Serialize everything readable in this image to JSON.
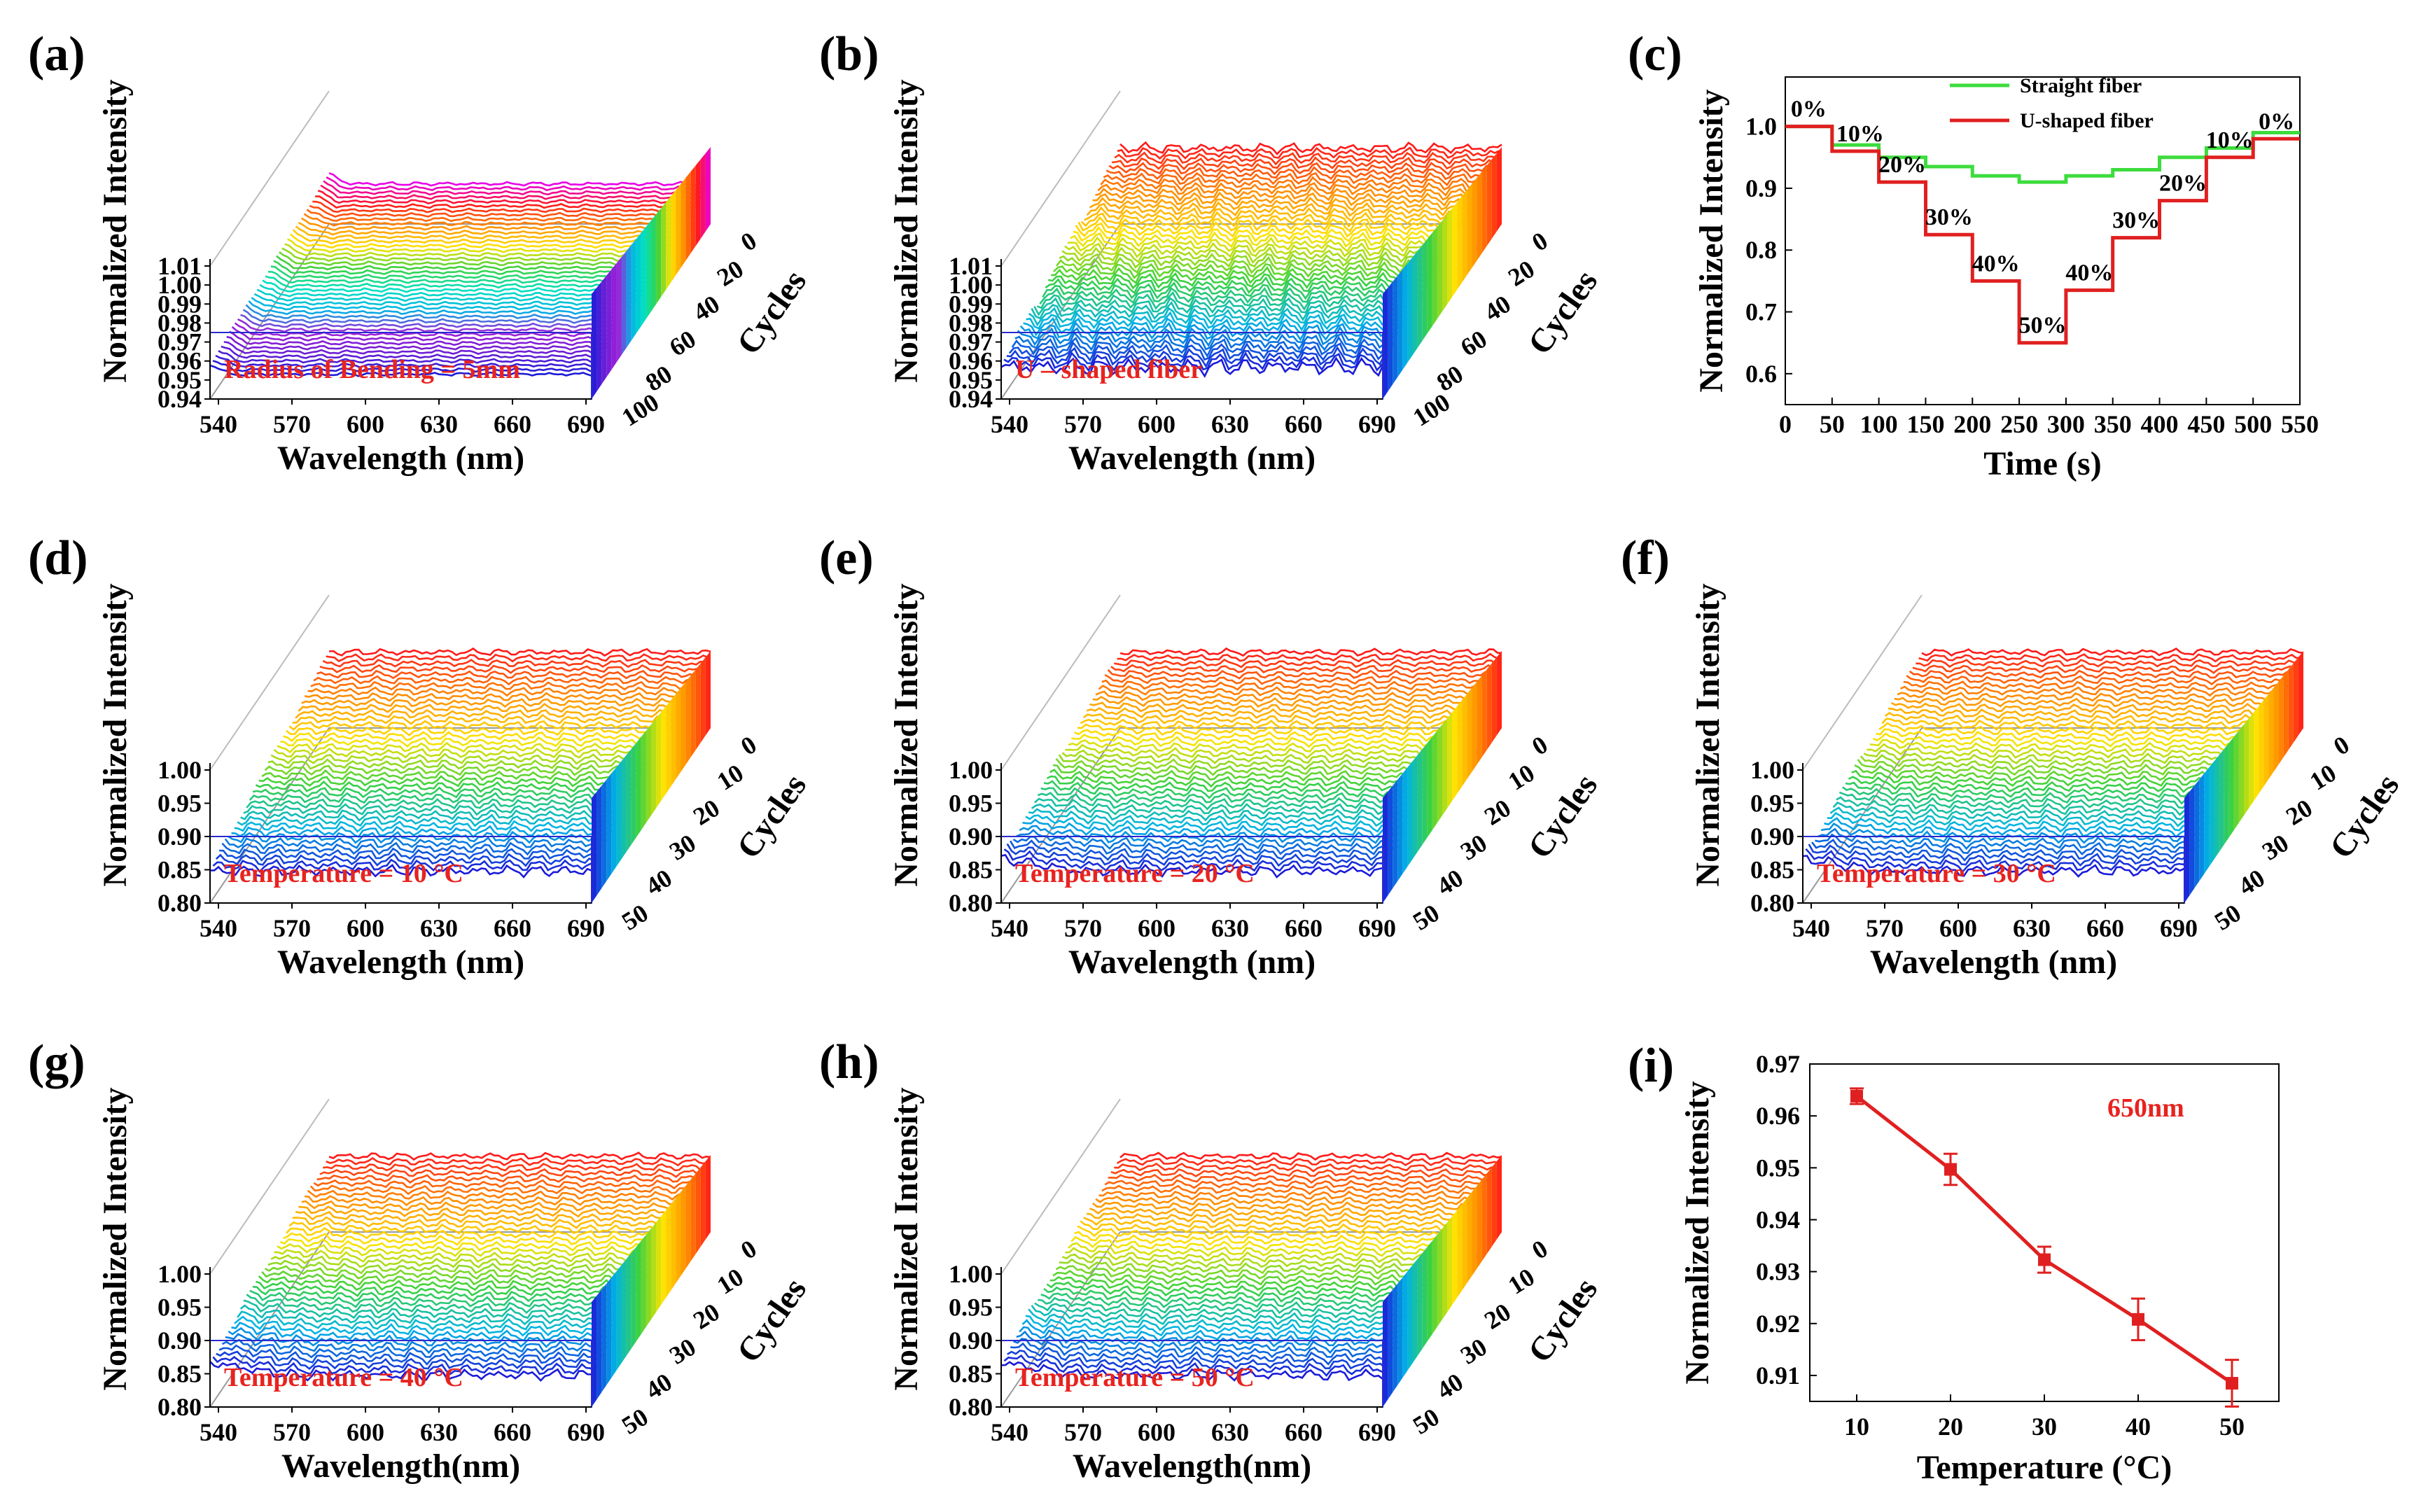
{
  "chart_data": [
    {
      "panel": "(a)",
      "type": "line",
      "subtype": "3d-waterfall",
      "xlabel": "Wavelength (nm)",
      "ylabel": "Normalized Intensity",
      "zlabel": "Cycles",
      "xticks": [
        "540",
        "570",
        "600",
        "630",
        "660",
        "690"
      ],
      "yticks": [
        "0.94",
        "0.95",
        "0.96",
        "0.97",
        "0.98",
        "0.99",
        "1.00",
        "1.01"
      ],
      "zticks": [
        "0",
        "20",
        "40",
        "60",
        "80",
        "100"
      ],
      "ylim": [
        0.94,
        1.01
      ],
      "n_cycles": 100,
      "annotation": "Radius of Bending = 5mm",
      "annotation_color": "#e8231f",
      "palette": [
        "#1b1bd9",
        "#6a1fd6",
        "#a020d8",
        "#00b4e6",
        "#00e0c0",
        "#3cd23c",
        "#ffe400",
        "#ff8c00",
        "#ff1a1a",
        "#e800e8"
      ]
    },
    {
      "panel": "(b)",
      "type": "line",
      "subtype": "3d-waterfall",
      "xlabel": "Wavelength (nm)",
      "ylabel": "Normalized Intensity",
      "zlabel": "Cycles",
      "xticks": [
        "540",
        "570",
        "600",
        "630",
        "660",
        "690"
      ],
      "yticks": [
        "0.94",
        "0.95",
        "0.96",
        "0.97",
        "0.98",
        "0.99",
        "1.00",
        "1.01"
      ],
      "zticks": [
        "0",
        "20",
        "40",
        "60",
        "80",
        "100"
      ],
      "ylim": [
        0.94,
        1.01
      ],
      "n_cycles": 100,
      "annotation": "U – shaped fiber",
      "annotation_color": "#e8231f",
      "palette": [
        "#1b1bd9",
        "#00b4e6",
        "#3cd23c",
        "#ffe400",
        "#ff8c00",
        "#ff1a1a"
      ]
    },
    {
      "panel": "(c)",
      "type": "line",
      "subtype": "step",
      "xlabel": "Time (s)",
      "ylabel": "Normalized Intensity",
      "xlim": [
        0,
        550
      ],
      "ylim": [
        0.55,
        1.08
      ],
      "xticks": [
        "0",
        "50",
        "100",
        "150",
        "200",
        "250",
        "300",
        "350",
        "400",
        "450",
        "500",
        "550"
      ],
      "yticks": [
        "0.6",
        "0.7",
        "0.8",
        "0.9",
        "1.0"
      ],
      "series": [
        {
          "name": "Straight fiber",
          "color": "#3ddc3d",
          "x": [
            0,
            50,
            50,
            100,
            100,
            150,
            150,
            200,
            200,
            250,
            250,
            300,
            300,
            350,
            350,
            400,
            400,
            450,
            450,
            500,
            500,
            550
          ],
          "y": [
            1.0,
            1.0,
            0.97,
            0.97,
            0.95,
            0.95,
            0.935,
            0.935,
            0.92,
            0.92,
            0.91,
            0.91,
            0.92,
            0.92,
            0.93,
            0.93,
            0.95,
            0.95,
            0.965,
            0.965,
            0.99,
            0.99
          ]
        },
        {
          "name": "U-shaped fiber",
          "color": "#e02020",
          "x": [
            0,
            50,
            50,
            100,
            100,
            150,
            150,
            200,
            200,
            250,
            250,
            300,
            300,
            350,
            350,
            400,
            400,
            450,
            450,
            500,
            500,
            550
          ],
          "y": [
            1.0,
            1.0,
            0.96,
            0.96,
            0.91,
            0.91,
            0.825,
            0.825,
            0.75,
            0.75,
            0.65,
            0.65,
            0.735,
            0.735,
            0.82,
            0.82,
            0.88,
            0.88,
            0.95,
            0.95,
            0.98,
            0.98
          ]
        }
      ],
      "step_labels": [
        {
          "text": "0%",
          "x": 25,
          "y": 1.0
        },
        {
          "text": "10%",
          "x": 80,
          "y": 0.96
        },
        {
          "text": "20%",
          "x": 125,
          "y": 0.91
        },
        {
          "text": "30%",
          "x": 175,
          "y": 0.825
        },
        {
          "text": "40%",
          "x": 225,
          "y": 0.75
        },
        {
          "text": "50%",
          "x": 275,
          "y": 0.65
        },
        {
          "text": "40%",
          "x": 325,
          "y": 0.735
        },
        {
          "text": "30%",
          "x": 375,
          "y": 0.82
        },
        {
          "text": "20%",
          "x": 425,
          "y": 0.88
        },
        {
          "text": "10%",
          "x": 475,
          "y": 0.95
        },
        {
          "text": "0%",
          "x": 525,
          "y": 0.98
        }
      ],
      "legend": "top-right"
    },
    {
      "panel": "(d)",
      "type": "line",
      "subtype": "3d-waterfall",
      "xlabel": "Wavelength (nm)",
      "ylabel": "Normalized Intensity",
      "zlabel": "Cycles",
      "xticks": [
        "540",
        "570",
        "600",
        "630",
        "660",
        "690"
      ],
      "yticks": [
        "0.80",
        "0.85",
        "0.90",
        "0.95",
        "1.00"
      ],
      "zticks": [
        "0",
        "10",
        "20",
        "30",
        "40",
        "50"
      ],
      "ylim": [
        0.8,
        1.0
      ],
      "n_cycles": 50,
      "annotation": "Temperature = 10 °C",
      "annotation_color": "#e8231f",
      "palette": [
        "#1b1bd9",
        "#00b4e6",
        "#3cd23c",
        "#ffe400",
        "#ff8c00",
        "#ff1a1a"
      ]
    },
    {
      "panel": "(e)",
      "type": "line",
      "subtype": "3d-waterfall",
      "xlabel": "Wavelength (nm)",
      "ylabel": "Normalized Intensity",
      "zlabel": "Cycles",
      "xticks": [
        "540",
        "570",
        "600",
        "630",
        "660",
        "690"
      ],
      "yticks": [
        "0.80",
        "0.85",
        "0.90",
        "0.95",
        "1.00"
      ],
      "zticks": [
        "0",
        "10",
        "20",
        "30",
        "40",
        "50"
      ],
      "ylim": [
        0.8,
        1.0
      ],
      "n_cycles": 50,
      "annotation": "Temperature = 20 °C",
      "annotation_color": "#e8231f",
      "palette": [
        "#1b1bd9",
        "#00b4e6",
        "#3cd23c",
        "#ffe400",
        "#ff8c00",
        "#ff1a1a"
      ]
    },
    {
      "panel": "(f)",
      "type": "line",
      "subtype": "3d-waterfall",
      "xlabel": "Wavelength (nm)",
      "ylabel": "Normalized Intensity",
      "zlabel": "Cycles",
      "xticks": [
        "540",
        "570",
        "600",
        "630",
        "660",
        "690"
      ],
      "yticks": [
        "0.80",
        "0.85",
        "0.90",
        "0.95",
        "1.00"
      ],
      "zticks": [
        "0",
        "10",
        "20",
        "30",
        "40",
        "50"
      ],
      "ylim": [
        0.8,
        1.0
      ],
      "n_cycles": 50,
      "annotation": "Temperature = 30 °C",
      "annotation_color": "#e8231f",
      "palette": [
        "#1b1bd9",
        "#00b4e6",
        "#3cd23c",
        "#ffe400",
        "#ff8c00",
        "#ff1a1a"
      ]
    },
    {
      "panel": "(g)",
      "type": "line",
      "subtype": "3d-waterfall",
      "xlabel": "Wavelength(nm)",
      "ylabel": "Normalized Intensity",
      "zlabel": "Cycles",
      "xticks": [
        "540",
        "570",
        "600",
        "630",
        "660",
        "690"
      ],
      "yticks": [
        "0.80",
        "0.85",
        "0.90",
        "0.95",
        "1.00"
      ],
      "zticks": [
        "0",
        "10",
        "20",
        "30",
        "40",
        "50"
      ],
      "ylim": [
        0.8,
        1.0
      ],
      "n_cycles": 50,
      "annotation": "Temperature = 40 °C",
      "annotation_color": "#e8231f",
      "palette": [
        "#1b1bd9",
        "#00b4e6",
        "#3cd23c",
        "#ffe400",
        "#ff8c00",
        "#ff1a1a"
      ]
    },
    {
      "panel": "(h)",
      "type": "line",
      "subtype": "3d-waterfall",
      "xlabel": "Wavelength(nm)",
      "ylabel": "Normalized Intensity",
      "zlabel": "Cycles",
      "xticks": [
        "540",
        "570",
        "600",
        "630",
        "660",
        "690"
      ],
      "yticks": [
        "0.80",
        "0.85",
        "0.90",
        "0.95",
        "1.00"
      ],
      "zticks": [
        "0",
        "10",
        "20",
        "30",
        "40",
        "50"
      ],
      "ylim": [
        0.8,
        1.0
      ],
      "n_cycles": 50,
      "annotation": "Temperature = 50 °C",
      "annotation_color": "#e8231f",
      "palette": [
        "#1b1bd9",
        "#00b4e6",
        "#3cd23c",
        "#ffe400",
        "#ff8c00",
        "#ff1a1a"
      ]
    },
    {
      "panel": "(i)",
      "type": "line",
      "subtype": "errorbar",
      "xlabel": "Temperature (°C)",
      "ylabel": "Normalized Intensity",
      "xlim": [
        5,
        55
      ],
      "ylim": [
        0.905,
        0.97
      ],
      "xticks": [
        "10",
        "20",
        "30",
        "40",
        "50"
      ],
      "yticks": [
        "0.91",
        "0.92",
        "0.93",
        "0.94",
        "0.95",
        "0.96",
        "0.97"
      ],
      "annotation": "650nm",
      "annotation_color": "#e8231f",
      "series": [
        {
          "name": "650nm",
          "color": "#e02020",
          "x": [
            10,
            20,
            30,
            40,
            50
          ],
          "y": [
            0.9638,
            0.9497,
            0.9323,
            0.9208,
            0.9085
          ],
          "err": [
            0.0015,
            0.003,
            0.0025,
            0.004,
            0.0045
          ]
        }
      ]
    }
  ]
}
